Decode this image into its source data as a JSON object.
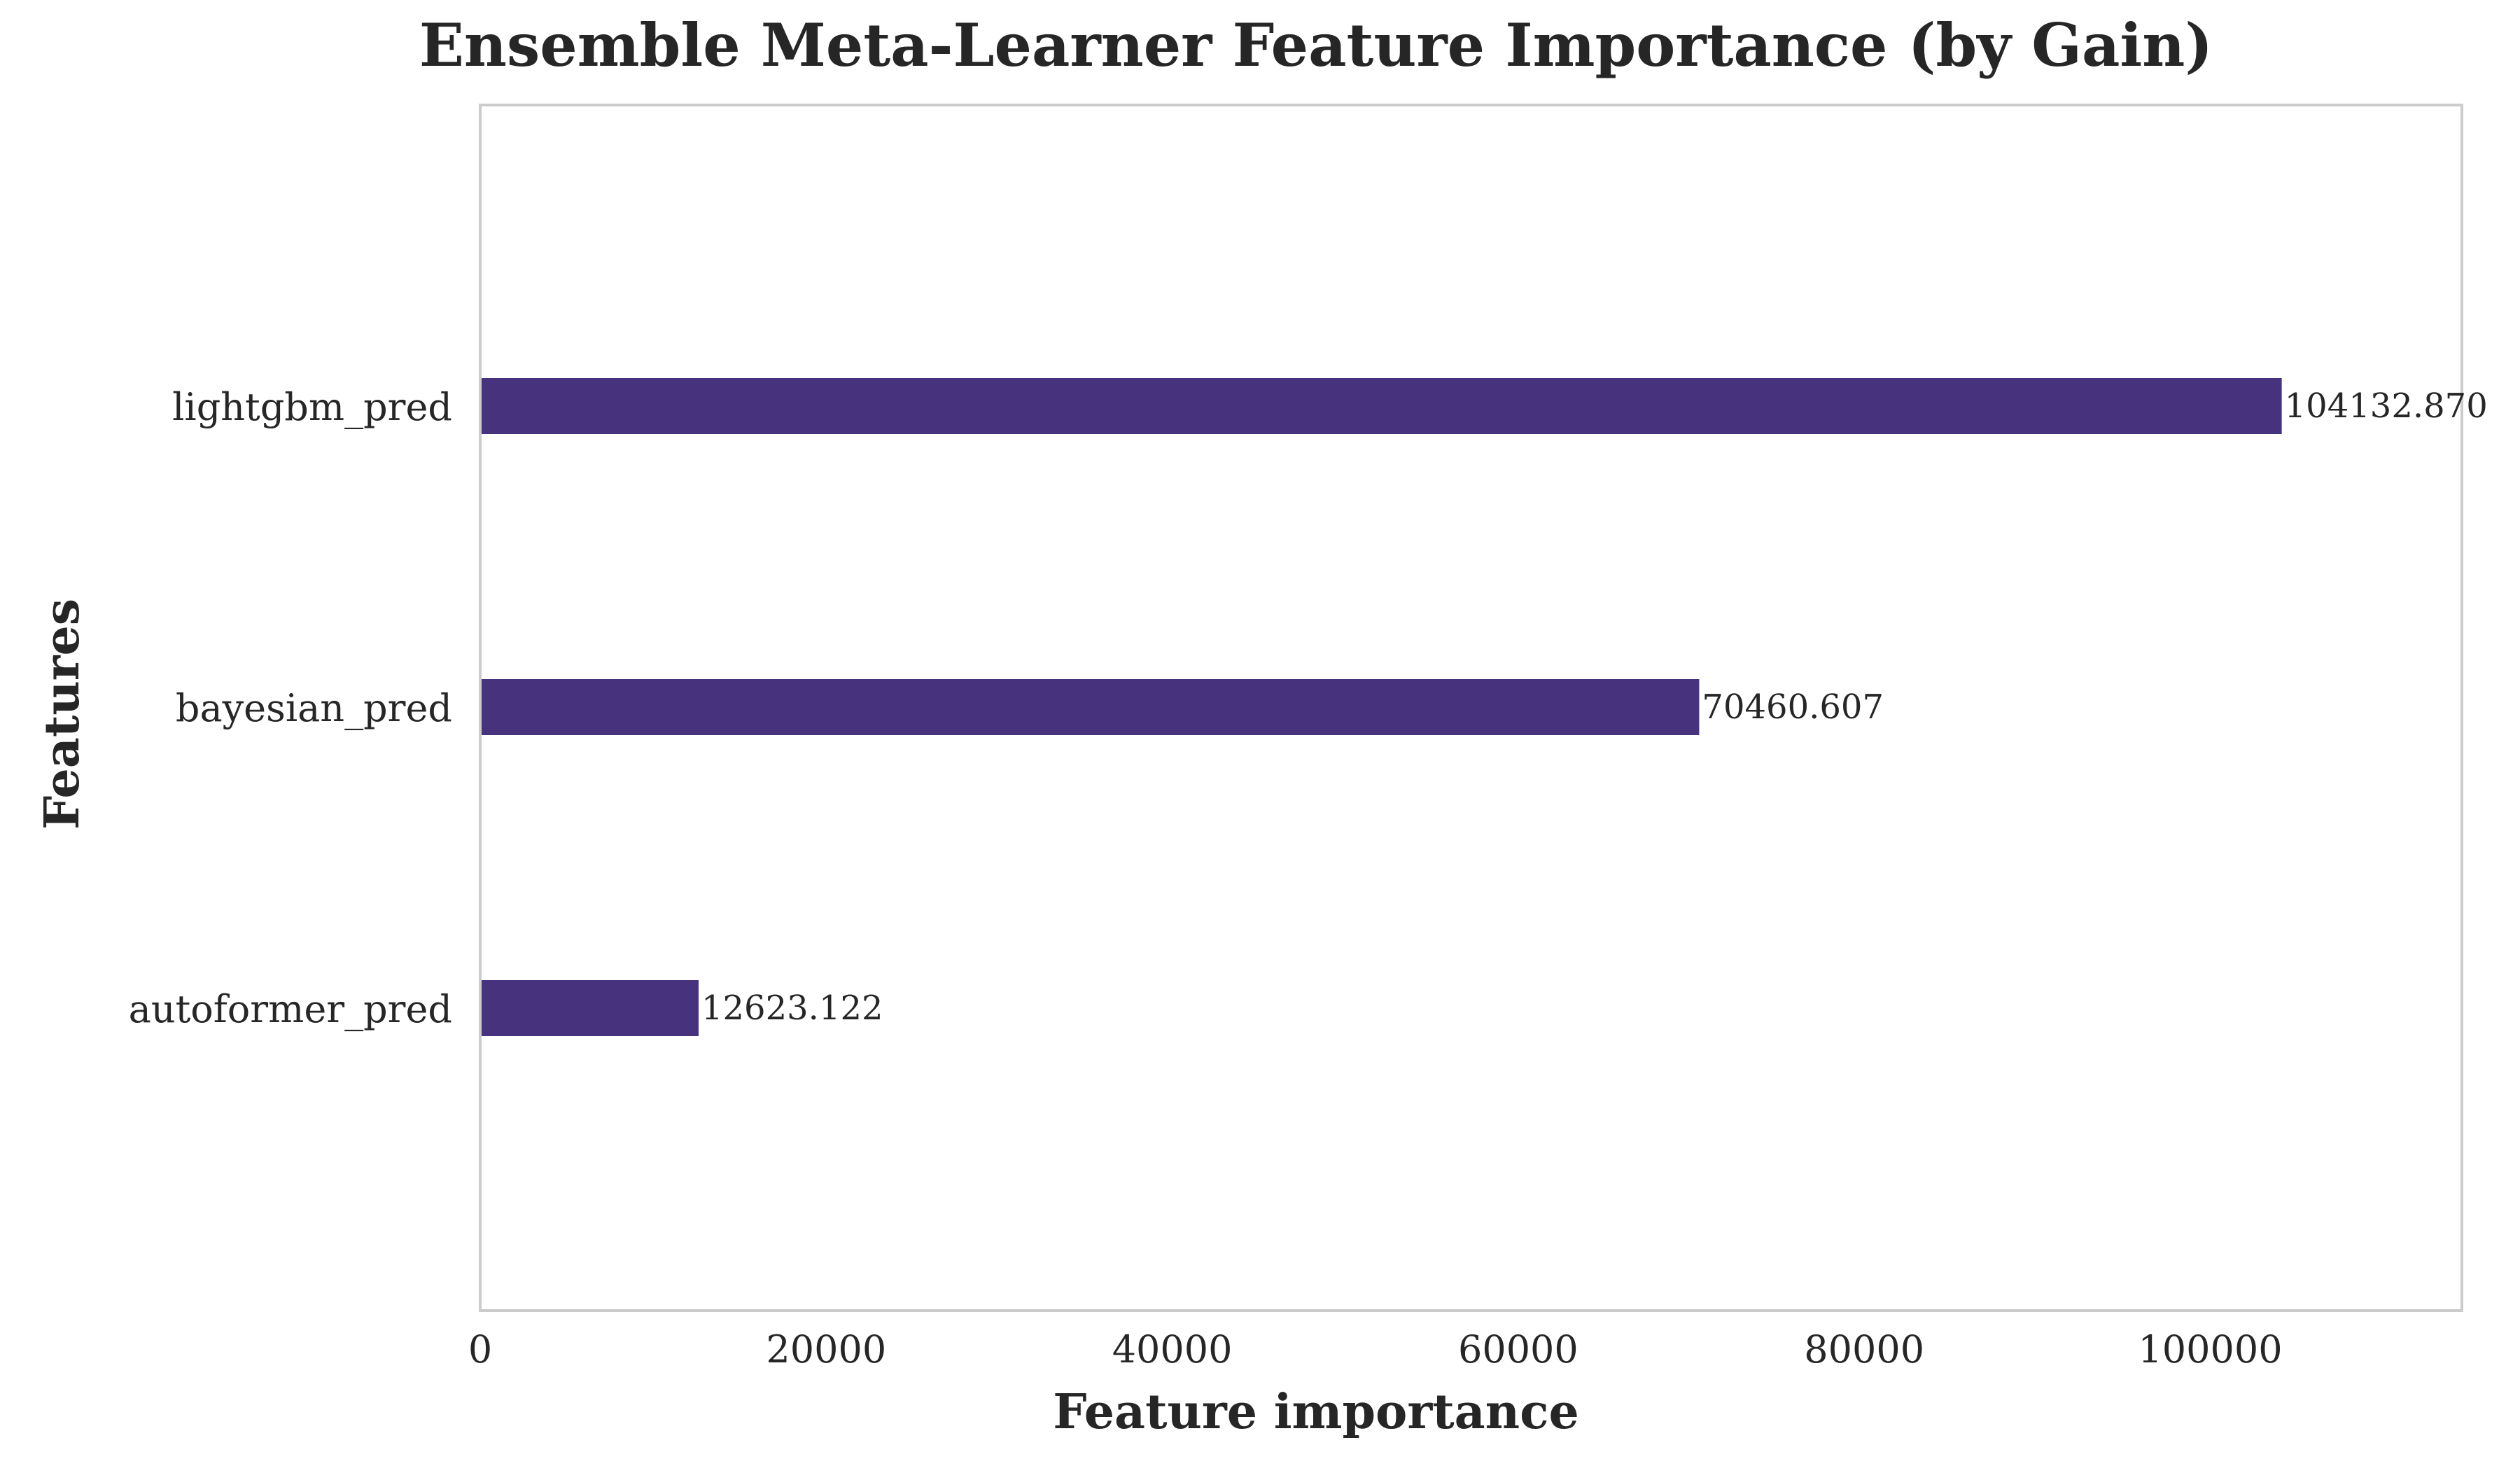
{
  "chart_data": {
    "type": "bar",
    "orientation": "horizontal",
    "title": "Ensemble Meta-Learner Feature Importance (by Gain)",
    "xlabel": "Feature importance",
    "ylabel": "Features",
    "categories": [
      "lightgbm_pred",
      "bayesian_pred",
      "autoformer_pred"
    ],
    "values": [
      104132.87,
      70460.607,
      12623.122
    ],
    "data_labels": [
      "104132.870",
      "70460.607",
      "12623.122"
    ],
    "xlim": [
      0,
      114546
    ],
    "xticks": [
      0,
      20000,
      40000,
      60000,
      80000,
      100000
    ],
    "xtick_labels": [
      "0",
      "20000",
      "40000",
      "60000",
      "80000",
      "100000"
    ],
    "grid": false,
    "bar_color": "#47327e",
    "frame_color": "#cccccc",
    "text_color": "#262626"
  }
}
